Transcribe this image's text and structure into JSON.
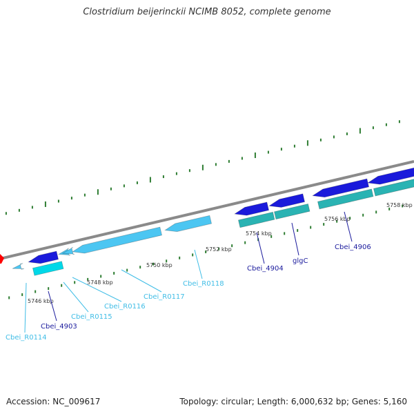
{
  "header": {
    "title": "Clostridium beijerinckii NCIMB 8052, complete genome"
  },
  "footer": {
    "accession": "Accession: NC_009617",
    "info": "Topology: circular; Length: 6,000,632 bp; Genes: 5,160"
  },
  "colors": {
    "backbone": "#8a8a8a",
    "ticks": "#2e7d32",
    "gene_dark": "#1a1adb",
    "gene_cyan": "#00d8e8",
    "gene_teal": "#2ab3b3",
    "gene_light": "#4cc6f2",
    "label_dark": "#1a1a9c",
    "label_light": "#3fbde6",
    "scale_text": "#333333",
    "marker": "#ff0000"
  },
  "scale_labels": [
    "5746 kbp",
    "5748 kbp",
    "5750 kbp",
    "5752 kbp",
    "5754 kbp",
    "5756 kbp",
    "5758 kbp"
  ],
  "gene_labels": [
    {
      "id": "Cbei_R0114",
      "text": "Cbei_R0114",
      "kind": "light"
    },
    {
      "id": "Cbei_4903",
      "text": "Cbei_4903",
      "kind": "dark"
    },
    {
      "id": "Cbei_R0115",
      "text": "Cbei_R0115",
      "kind": "light"
    },
    {
      "id": "Cbei_R0116",
      "text": "Cbei_R0116",
      "kind": "light"
    },
    {
      "id": "Cbei_R0117",
      "text": "Cbei_R0117",
      "kind": "light"
    },
    {
      "id": "Cbei_R0118",
      "text": "Cbei_R0118",
      "kind": "light"
    },
    {
      "id": "Cbei_4904",
      "text": "Cbei_4904",
      "kind": "dark"
    },
    {
      "id": "glgC",
      "text": "glgC",
      "kind": "dark"
    },
    {
      "id": "Cbei_4906",
      "text": "Cbei_4906",
      "kind": "dark"
    }
  ]
}
